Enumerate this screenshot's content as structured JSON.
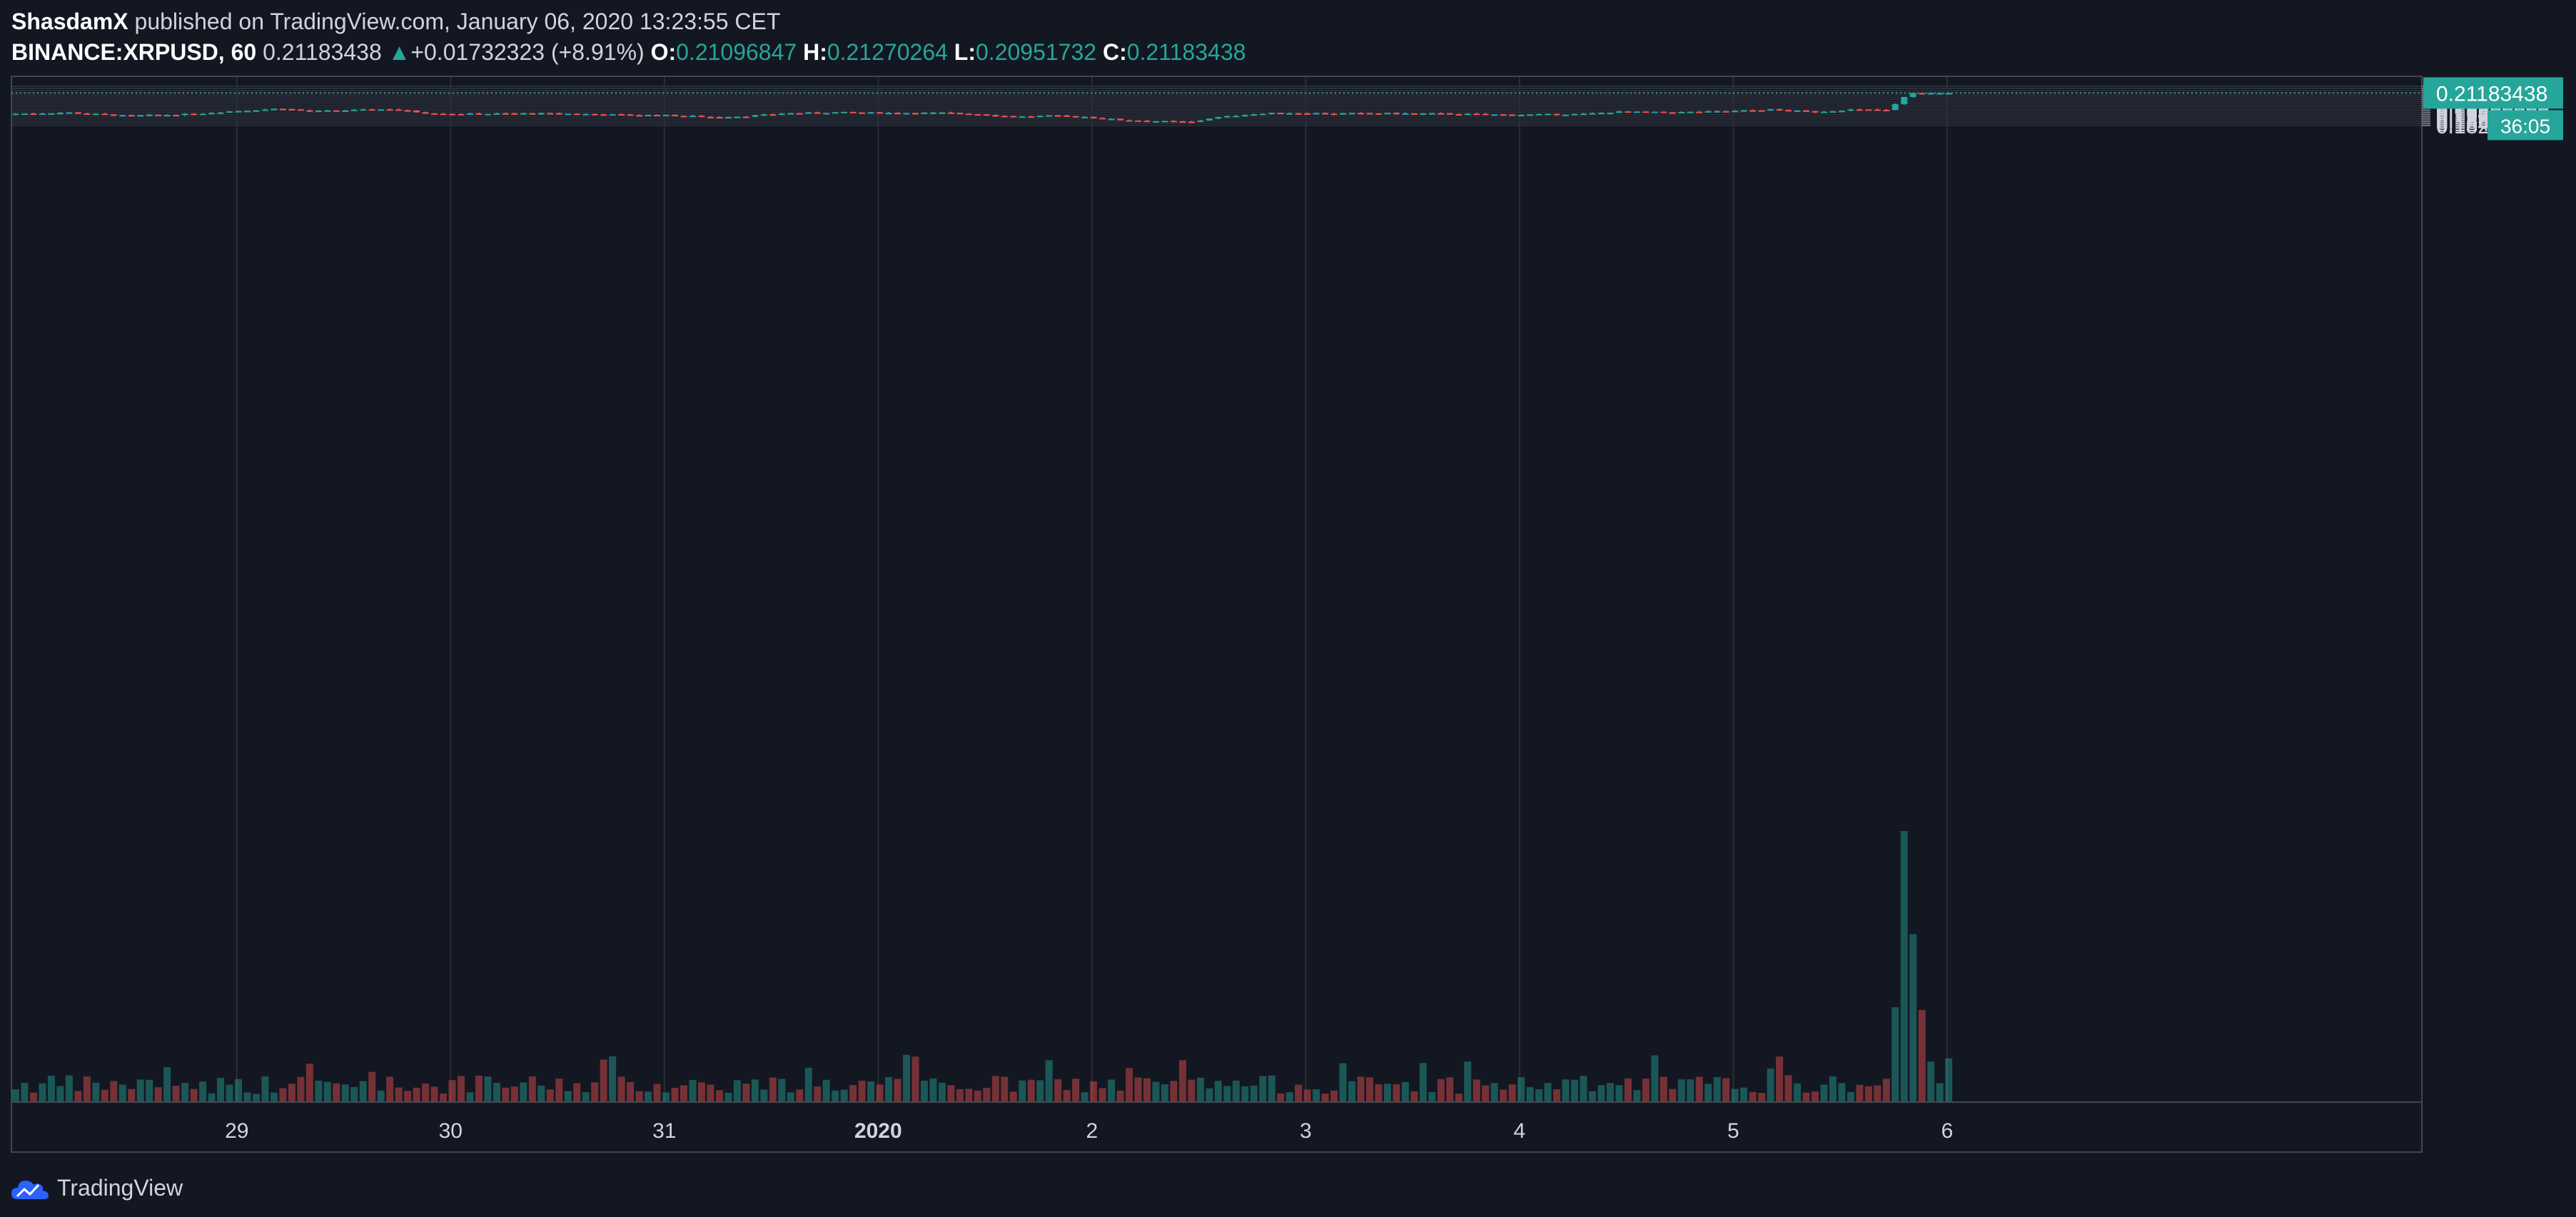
{
  "header": {
    "author": "ShasdamX",
    "published_text": "published on TradingView.com, January 06, 2020 13:23:55 CET",
    "symbol": "BINANCE:XRPUSD, 60",
    "last_price": "0.21183438",
    "change_arrow": "▲",
    "change": "+0.01732323 (+8.91%)",
    "open_label": "O:",
    "open": "0.21096847",
    "high_label": "H:",
    "high": "0.21270264",
    "low_label": "L:",
    "low": "0.20951732",
    "close_label": "C:",
    "close": "0.21183438"
  },
  "price_tag": {
    "price": "0.21183438",
    "countdown": "36:05"
  },
  "footer": {
    "brand": "TradingView",
    "logo_icon": "tradingview-cloud-icon"
  },
  "colors": {
    "background": "#131722",
    "up": "#26a69a",
    "down": "#ef5350",
    "text": "#d1d4dc",
    "grid": "#2a2e39"
  },
  "chart_data": {
    "type": "candlestick",
    "interval": "60",
    "y_ticks": [
      "0.21800000",
      "0.21600000",
      "0.21400000",
      "0.21200000",
      "0.21000000",
      "0.20800000",
      "0.20600000",
      "0.20400000",
      "0.20200000",
      "0.20000000",
      "0.19800000",
      "0.19600000",
      "0.19400000",
      "0.19200000",
      "0.19000000",
      "0.18800000",
      "0.18600000",
      "0.18400000",
      "0.18200000"
    ],
    "ylim": [
      0.1806,
      0.2188
    ],
    "x_ticks": [
      {
        "label": "29",
        "bar": 12
      },
      {
        "label": "30",
        "bar": 36
      },
      {
        "label": "31",
        "bar": 60
      },
      {
        "label": "2020",
        "bar": 84,
        "bold": true
      },
      {
        "label": "2",
        "bar": 108
      },
      {
        "label": "3",
        "bar": 132
      },
      {
        "label": "4",
        "bar": 156
      },
      {
        "label": "5",
        "bar": 180
      },
      {
        "label": "6",
        "bar": 204
      }
    ],
    "bars_count": 218,
    "grid": true,
    "keypoints": [
      {
        "i": 0,
        "c": 0.1928
      },
      {
        "i": 6,
        "c": 0.1938
      },
      {
        "i": 12,
        "c": 0.191
      },
      {
        "i": 16,
        "c": 0.1915
      },
      {
        "i": 20,
        "c": 0.1925
      },
      {
        "i": 24,
        "c": 0.195
      },
      {
        "i": 30,
        "c": 0.1975
      },
      {
        "i": 33,
        "c": 0.195
      },
      {
        "i": 38,
        "c": 0.196
      },
      {
        "i": 42,
        "c": 0.197
      },
      {
        "i": 46,
        "c": 0.1935
      },
      {
        "i": 50,
        "c": 0.1925
      },
      {
        "i": 56,
        "c": 0.193
      },
      {
        "i": 62,
        "c": 0.1928
      },
      {
        "i": 68,
        "c": 0.1918
      },
      {
        "i": 74,
        "c": 0.1912
      },
      {
        "i": 78,
        "c": 0.1898
      },
      {
        "i": 82,
        "c": 0.1905
      },
      {
        "i": 86,
        "c": 0.193
      },
      {
        "i": 92,
        "c": 0.194
      },
      {
        "i": 98,
        "c": 0.1935
      },
      {
        "i": 104,
        "c": 0.1935
      },
      {
        "i": 108,
        "c": 0.1925
      },
      {
        "i": 112,
        "c": 0.19
      },
      {
        "i": 116,
        "c": 0.1908
      },
      {
        "i": 120,
        "c": 0.19
      },
      {
        "i": 124,
        "c": 0.187
      },
      {
        "i": 128,
        "c": 0.186
      },
      {
        "i": 132,
        "c": 0.185
      },
      {
        "i": 134,
        "c": 0.1885
      },
      {
        "i": 138,
        "c": 0.192
      },
      {
        "i": 142,
        "c": 0.1935
      },
      {
        "i": 148,
        "c": 0.193
      },
      {
        "i": 154,
        "c": 0.193
      },
      {
        "i": 160,
        "c": 0.1928
      },
      {
        "i": 168,
        "c": 0.1918
      },
      {
        "i": 176,
        "c": 0.1925
      },
      {
        "i": 180,
        "c": 0.1945
      },
      {
        "i": 186,
        "c": 0.194
      },
      {
        "i": 192,
        "c": 0.195
      },
      {
        "i": 197,
        "c": 0.1965
      },
      {
        "i": 202,
        "c": 0.1945
      },
      {
        "i": 206,
        "c": 0.1965
      },
      {
        "i": 210,
        "c": 0.1962
      },
      {
        "i": 211,
        "c": 0.2015
      },
      {
        "i": 212,
        "c": 0.2082
      },
      {
        "i": 213,
        "c": 0.2118
      },
      {
        "i": 214,
        "c": 0.211
      },
      {
        "i": 215,
        "c": 0.2118
      }
    ],
    "volume_spikes": [
      {
        "i": 211,
        "v": 0.35
      },
      {
        "i": 212,
        "v": 1.0
      },
      {
        "i": 213,
        "v": 0.62
      },
      {
        "i": 214,
        "v": 0.34
      },
      {
        "i": 215,
        "v": 0.15
      }
    ]
  }
}
